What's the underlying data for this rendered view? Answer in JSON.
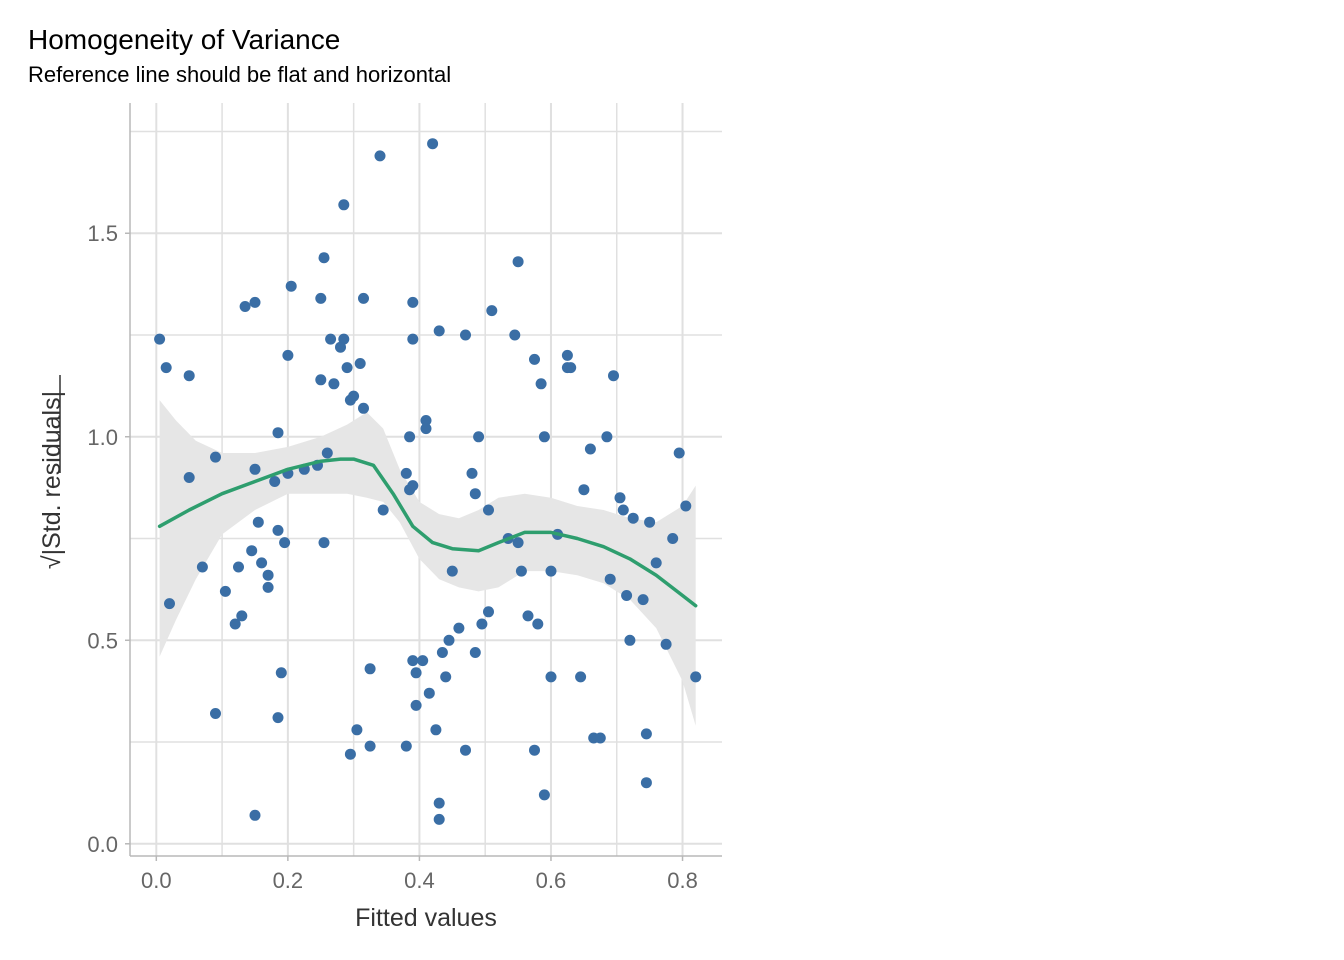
{
  "chart_data": {
    "type": "scatter",
    "title": "Homogeneity of Variance",
    "subtitle": "Reference line should be flat and horizontal",
    "xlabel": "Fitted values",
    "ylabel_radical": "√",
    "ylabel": "|Std. residuals|",
    "xlim": [
      -0.04,
      0.86
    ],
    "ylim": [
      -0.03,
      1.82
    ],
    "x_ticks": [
      0.0,
      0.2,
      0.4,
      0.6,
      0.8
    ],
    "x_tick_labels": [
      "0.0",
      "0.2",
      "0.4",
      "0.6",
      "0.8"
    ],
    "y_ticks": [
      0.0,
      0.5,
      1.0,
      1.5
    ],
    "y_tick_labels": [
      "0.0",
      "0.5",
      "1.0",
      "1.5"
    ],
    "x_minor_grid": [
      0.1,
      0.3,
      0.5,
      0.7
    ],
    "y_minor_grid": [
      0.25,
      0.75,
      1.25,
      1.75
    ],
    "grid": true,
    "colors": {
      "points": "#3A6EA5",
      "smooth": "#2E9E6E",
      "band": "#E6E6E6",
      "grid": "#E0E0E0",
      "axis": "#B8B8B8"
    },
    "points": [
      [
        0.005,
        1.24
      ],
      [
        0.015,
        1.17
      ],
      [
        0.02,
        0.59
      ],
      [
        0.05,
        1.15
      ],
      [
        0.05,
        0.9
      ],
      [
        0.07,
        0.68
      ],
      [
        0.09,
        0.95
      ],
      [
        0.09,
        0.32
      ],
      [
        0.105,
        0.62
      ],
      [
        0.12,
        0.54
      ],
      [
        0.125,
        0.68
      ],
      [
        0.13,
        0.56
      ],
      [
        0.135,
        1.32
      ],
      [
        0.145,
        0.72
      ],
      [
        0.15,
        1.33
      ],
      [
        0.15,
        0.92
      ],
      [
        0.15,
        0.07
      ],
      [
        0.155,
        0.79
      ],
      [
        0.16,
        0.69
      ],
      [
        0.17,
        0.66
      ],
      [
        0.17,
        0.63
      ],
      [
        0.18,
        0.89
      ],
      [
        0.185,
        1.01
      ],
      [
        0.185,
        0.77
      ],
      [
        0.185,
        0.31
      ],
      [
        0.19,
        0.42
      ],
      [
        0.195,
        0.74
      ],
      [
        0.2,
        1.2
      ],
      [
        0.2,
        0.91
      ],
      [
        0.205,
        1.37
      ],
      [
        0.225,
        0.92
      ],
      [
        0.245,
        0.93
      ],
      [
        0.25,
        1.14
      ],
      [
        0.25,
        1.34
      ],
      [
        0.255,
        1.44
      ],
      [
        0.255,
        0.74
      ],
      [
        0.26,
        0.96
      ],
      [
        0.265,
        1.24
      ],
      [
        0.27,
        1.13
      ],
      [
        0.28,
        1.22
      ],
      [
        0.285,
        1.24
      ],
      [
        0.285,
        1.57
      ],
      [
        0.29,
        1.17
      ],
      [
        0.295,
        0.22
      ],
      [
        0.295,
        1.09
      ],
      [
        0.3,
        1.1
      ],
      [
        0.305,
        0.28
      ],
      [
        0.31,
        1.18
      ],
      [
        0.315,
        1.34
      ],
      [
        0.315,
        1.07
      ],
      [
        0.325,
        0.43
      ],
      [
        0.325,
        0.24
      ],
      [
        0.34,
        1.69
      ],
      [
        0.345,
        0.82
      ],
      [
        0.38,
        0.91
      ],
      [
        0.38,
        0.24
      ],
      [
        0.385,
        1.0
      ],
      [
        0.385,
        0.87
      ],
      [
        0.39,
        1.33
      ],
      [
        0.39,
        0.88
      ],
      [
        0.39,
        0.45
      ],
      [
        0.39,
        1.24
      ],
      [
        0.395,
        0.42
      ],
      [
        0.395,
        0.34
      ],
      [
        0.405,
        0.45
      ],
      [
        0.41,
        1.04
      ],
      [
        0.41,
        1.02
      ],
      [
        0.415,
        0.37
      ],
      [
        0.42,
        1.72
      ],
      [
        0.425,
        0.28
      ],
      [
        0.43,
        0.1
      ],
      [
        0.43,
        0.06
      ],
      [
        0.43,
        1.26
      ],
      [
        0.435,
        0.47
      ],
      [
        0.44,
        0.41
      ],
      [
        0.445,
        0.5
      ],
      [
        0.45,
        0.67
      ],
      [
        0.46,
        0.53
      ],
      [
        0.47,
        1.25
      ],
      [
        0.47,
        0.23
      ],
      [
        0.48,
        0.91
      ],
      [
        0.485,
        0.86
      ],
      [
        0.485,
        0.47
      ],
      [
        0.49,
        1.0
      ],
      [
        0.495,
        0.54
      ],
      [
        0.505,
        0.82
      ],
      [
        0.505,
        0.57
      ],
      [
        0.51,
        1.31
      ],
      [
        0.535,
        0.75
      ],
      [
        0.545,
        1.25
      ],
      [
        0.55,
        1.43
      ],
      [
        0.55,
        0.74
      ],
      [
        0.555,
        0.67
      ],
      [
        0.565,
        0.56
      ],
      [
        0.575,
        1.19
      ],
      [
        0.575,
        0.23
      ],
      [
        0.58,
        0.54
      ],
      [
        0.585,
        1.13
      ],
      [
        0.59,
        1.0
      ],
      [
        0.59,
        0.12
      ],
      [
        0.6,
        0.67
      ],
      [
        0.6,
        0.41
      ],
      [
        0.61,
        0.76
      ],
      [
        0.625,
        1.2
      ],
      [
        0.625,
        1.17
      ],
      [
        0.63,
        1.17
      ],
      [
        0.645,
        0.41
      ],
      [
        0.65,
        0.87
      ],
      [
        0.66,
        0.97
      ],
      [
        0.665,
        0.26
      ],
      [
        0.675,
        0.26
      ],
      [
        0.685,
        1.0
      ],
      [
        0.69,
        0.65
      ],
      [
        0.695,
        1.15
      ],
      [
        0.705,
        0.85
      ],
      [
        0.71,
        0.82
      ],
      [
        0.715,
        0.61
      ],
      [
        0.72,
        0.5
      ],
      [
        0.725,
        0.8
      ],
      [
        0.74,
        0.6
      ],
      [
        0.745,
        0.27
      ],
      [
        0.745,
        0.15
      ],
      [
        0.75,
        0.79
      ],
      [
        0.76,
        0.69
      ],
      [
        0.775,
        0.49
      ],
      [
        0.785,
        0.75
      ],
      [
        0.795,
        0.96
      ],
      [
        0.805,
        0.83
      ],
      [
        0.82,
        0.41
      ]
    ],
    "smooth_line": [
      [
        0.005,
        0.78
      ],
      [
        0.05,
        0.82
      ],
      [
        0.1,
        0.86
      ],
      [
        0.15,
        0.89
      ],
      [
        0.2,
        0.92
      ],
      [
        0.25,
        0.94
      ],
      [
        0.28,
        0.945
      ],
      [
        0.3,
        0.945
      ],
      [
        0.33,
        0.93
      ],
      [
        0.36,
        0.86
      ],
      [
        0.39,
        0.78
      ],
      [
        0.42,
        0.74
      ],
      [
        0.45,
        0.725
      ],
      [
        0.49,
        0.72
      ],
      [
        0.52,
        0.74
      ],
      [
        0.56,
        0.765
      ],
      [
        0.6,
        0.765
      ],
      [
        0.64,
        0.75
      ],
      [
        0.68,
        0.73
      ],
      [
        0.72,
        0.7
      ],
      [
        0.76,
        0.66
      ],
      [
        0.8,
        0.61
      ],
      [
        0.82,
        0.585
      ]
    ],
    "band_upper": [
      [
        0.005,
        1.09
      ],
      [
        0.03,
        1.04
      ],
      [
        0.06,
        0.99
      ],
      [
        0.1,
        0.96
      ],
      [
        0.15,
        0.96
      ],
      [
        0.2,
        0.975
      ],
      [
        0.25,
        1.0
      ],
      [
        0.29,
        1.03
      ],
      [
        0.32,
        1.06
      ],
      [
        0.345,
        1.02
      ],
      [
        0.37,
        0.92
      ],
      [
        0.4,
        0.84
      ],
      [
        0.43,
        0.81
      ],
      [
        0.46,
        0.8
      ],
      [
        0.49,
        0.82
      ],
      [
        0.52,
        0.85
      ],
      [
        0.56,
        0.86
      ],
      [
        0.6,
        0.85
      ],
      [
        0.64,
        0.83
      ],
      [
        0.68,
        0.82
      ],
      [
        0.72,
        0.8
      ],
      [
        0.76,
        0.79
      ],
      [
        0.8,
        0.83
      ],
      [
        0.82,
        0.88
      ]
    ],
    "band_lower": [
      [
        0.82,
        0.29
      ],
      [
        0.8,
        0.4
      ],
      [
        0.76,
        0.53
      ],
      [
        0.72,
        0.6
      ],
      [
        0.68,
        0.64
      ],
      [
        0.64,
        0.66
      ],
      [
        0.6,
        0.67
      ],
      [
        0.56,
        0.67
      ],
      [
        0.52,
        0.63
      ],
      [
        0.49,
        0.62
      ],
      [
        0.46,
        0.63
      ],
      [
        0.43,
        0.65
      ],
      [
        0.4,
        0.7
      ],
      [
        0.37,
        0.79
      ],
      [
        0.345,
        0.84
      ],
      [
        0.32,
        0.85
      ],
      [
        0.29,
        0.86
      ],
      [
        0.25,
        0.86
      ],
      [
        0.2,
        0.86
      ],
      [
        0.15,
        0.82
      ],
      [
        0.1,
        0.76
      ],
      [
        0.06,
        0.65
      ],
      [
        0.03,
        0.55
      ],
      [
        0.005,
        0.46
      ]
    ]
  }
}
